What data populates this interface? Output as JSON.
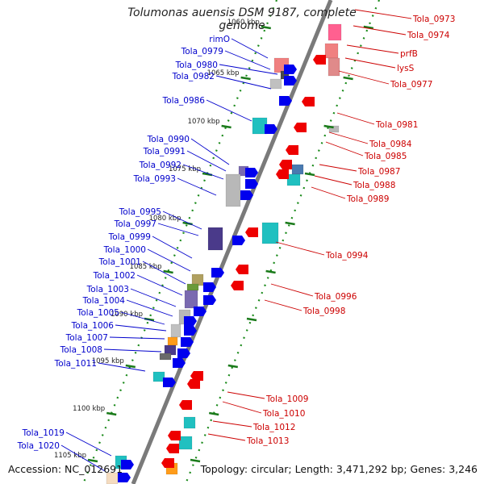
{
  "title": "Tolumonas auensis DSM 9187, complete genome",
  "footer": {
    "accession": "Accession: NC_012691",
    "summary": "Topology: circular; Length: 3,471,292 bp; Genes: 3,246"
  },
  "colors": {
    "forward_label": "#0000cc",
    "reverse_label": "#cc0000",
    "backbone": "#7a7a7a",
    "tick_minor": "#1a8a1a"
  },
  "ticks": [
    {
      "kbp": 1060,
      "label": "1060 kbp"
    },
    {
      "kbp": 1065,
      "label": "1065 kbp"
    },
    {
      "kbp": 1070,
      "label": "1070 kbp"
    },
    {
      "kbp": 1075,
      "label": "1075 kbp"
    },
    {
      "kbp": 1080,
      "label": "1080 kbp"
    },
    {
      "kbp": 1085,
      "label": "1085 kbp"
    },
    {
      "kbp": 1090,
      "label": "1090 kbp"
    },
    {
      "kbp": 1095,
      "label": "1095 kbp"
    },
    {
      "kbp": 1100,
      "label": "1100 kbp"
    },
    {
      "kbp": 1105,
      "label": "1105 kbp"
    }
  ],
  "forward_genes": [
    {
      "label": "rimO"
    },
    {
      "label": "Tola_0979"
    },
    {
      "label": "Tola_0980"
    },
    {
      "label": "Tola_0982"
    },
    {
      "label": "Tola_0986"
    },
    {
      "label": "Tola_0990"
    },
    {
      "label": "Tola_0991"
    },
    {
      "label": "Tola_0992"
    },
    {
      "label": "Tola_0993"
    },
    {
      "label": "Tola_0995"
    },
    {
      "label": "Tola_0997"
    },
    {
      "label": "Tola_0999"
    },
    {
      "label": "Tola_1000"
    },
    {
      "label": "Tola_1001"
    },
    {
      "label": "Tola_1002"
    },
    {
      "label": "Tola_1003"
    },
    {
      "label": "Tola_1004"
    },
    {
      "label": "Tola_1005"
    },
    {
      "label": "Tola_1006"
    },
    {
      "label": "Tola_1007"
    },
    {
      "label": "Tola_1008"
    },
    {
      "label": "Tola_1011"
    },
    {
      "label": "Tola_1019"
    },
    {
      "label": "Tola_1020"
    }
  ],
  "reverse_genes": [
    {
      "label": "Tola_0973"
    },
    {
      "label": "Tola_0974"
    },
    {
      "label": "prfB"
    },
    {
      "label": "lysS"
    },
    {
      "label": "Tola_0977"
    },
    {
      "label": "Tola_0981"
    },
    {
      "label": "Tola_0984"
    },
    {
      "label": "Tola_0985"
    },
    {
      "label": "Tola_0987"
    },
    {
      "label": "Tola_0988"
    },
    {
      "label": "Tola_0989"
    },
    {
      "label": "Tola_0994"
    },
    {
      "label": "Tola_0996"
    },
    {
      "label": "Tola_0998"
    },
    {
      "label": "Tola_1009"
    },
    {
      "label": "Tola_1010"
    },
    {
      "label": "Tola_1012"
    },
    {
      "label": "Tola_1013"
    }
  ]
}
